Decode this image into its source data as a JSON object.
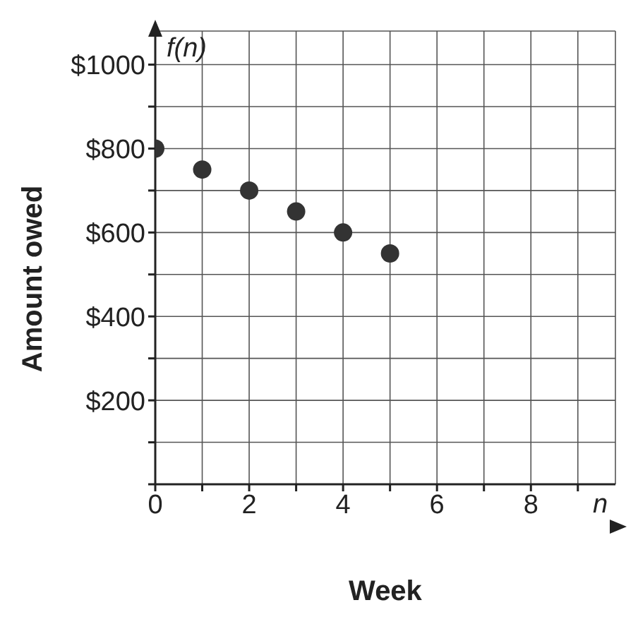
{
  "chart_data": {
    "type": "scatter",
    "xlabel": "Week",
    "ylabel": "Amount owed",
    "annotations": [
      "f(n)",
      "n"
    ],
    "x": [
      0,
      1,
      2,
      3,
      4,
      5
    ],
    "series": [
      {
        "color": "#333333",
        "values": [
          800,
          750,
          700,
          650,
          600,
          550
        ]
      }
    ],
    "marker": "circle",
    "xlim": [
      0,
      9.8
    ],
    "xticks": [
      0,
      {
        "value": 1,
        "label": null
      },
      2,
      {
        "value": 3,
        "label": null
      },
      4,
      {
        "value": 5,
        "label": null
      },
      6,
      {
        "value": 7,
        "label": null
      },
      8,
      {
        "value": 9,
        "label": null
      }
    ],
    "ylim": [
      0,
      1080
    ],
    "yticks": [
      {
        "value": 0,
        "label": null
      },
      {
        "value": 100,
        "label": null
      },
      {
        "value": 200,
        "label": "$200"
      },
      {
        "value": 300,
        "label": null
      },
      {
        "value": 400,
        "label": "$400"
      },
      {
        "value": 500,
        "label": null
      },
      {
        "value": 600,
        "label": "$600"
      },
      {
        "value": 700,
        "label": null
      },
      {
        "value": 800,
        "label": "$800"
      },
      {
        "value": 900,
        "label": null
      },
      {
        "value": 1000,
        "label": "$1000"
      }
    ],
    "grid": true
  }
}
